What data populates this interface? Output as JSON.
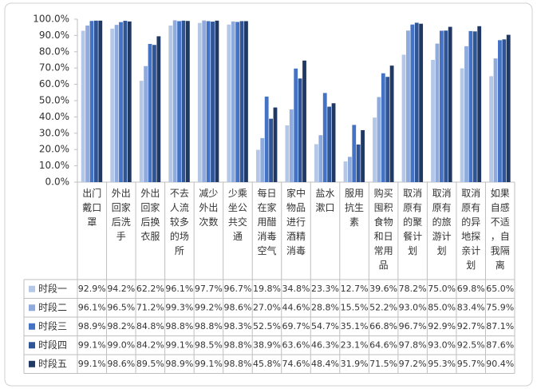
{
  "chart_data": {
    "type": "bar",
    "categories": [
      "出门戴口罩",
      "外出回家后洗手",
      "外出回家后换衣服",
      "不去人流较多的场所",
      "减少外出次数",
      "少乘坐公共交通",
      "每日在家用醋消毒空气",
      "家中物品进行酒精消毒",
      "盐水漱口",
      "服用抗生素",
      "购买囤积食物和日常用品",
      "取消原有的聚餐计划",
      "取消原有的旅游计划",
      "取消原有的异地探亲计划",
      "如果自感不适，自我隔离"
    ],
    "series": [
      {
        "name": "时段一",
        "color": "#b4c7e7",
        "values": [
          92.9,
          94.2,
          62.2,
          96.1,
          97.7,
          96.7,
          19.8,
          34.8,
          23.3,
          12.7,
          39.6,
          78.2,
          75.0,
          69.8,
          65.0
        ],
        "value_labels": [
          "92.9%",
          "94.2%",
          "62.2%",
          "96.1%",
          "97.7%",
          "96.7%",
          "19.8%",
          "34.8%",
          "23.3%",
          "12.7%",
          "39.6%",
          "78.2%",
          "75.0%",
          "69.8%",
          "65.0%"
        ]
      },
      {
        "name": "时段二",
        "color": "#8faadc",
        "values": [
          96.1,
          96.5,
          71.2,
          99.3,
          99.2,
          98.6,
          27.0,
          44.6,
          28.8,
          15.5,
          52.2,
          93.0,
          85.0,
          83.4,
          75.9
        ],
        "value_labels": [
          "96.1%",
          "96.5%",
          "71.2%",
          "99.3%",
          "99.2%",
          "98.6%",
          "27.0%",
          "44.6%",
          "28.8%",
          "15.5%",
          "52.2%",
          "93.0%",
          "85.0%",
          "83.4%",
          "75.9%"
        ]
      },
      {
        "name": "时段三",
        "color": "#4472c4",
        "values": [
          98.9,
          98.2,
          84.8,
          98.8,
          98.8,
          98.3,
          52.5,
          69.7,
          54.7,
          35.1,
          66.8,
          96.7,
          92.9,
          92.7,
          87.1
        ],
        "value_labels": [
          "98.9%",
          "98.2%",
          "84.8%",
          "98.8%",
          "98.8%",
          "98.3%",
          "52.5%",
          "69.7%",
          "54.7%",
          "35.1%",
          "66.8%",
          "96.7%",
          "92.9%",
          "92.7%",
          "87.1%"
        ]
      },
      {
        "name": "时段四",
        "color": "#2f5597",
        "values": [
          99.1,
          99.0,
          84.2,
          99.1,
          98.5,
          98.8,
          38.9,
          63.6,
          46.3,
          23.1,
          64.6,
          97.8,
          93.0,
          92.5,
          87.6
        ],
        "value_labels": [
          "99.1%",
          "99.0%",
          "84.2%",
          "99.1%",
          "98.5%",
          "98.8%",
          "38.9%",
          "63.6%",
          "46.3%",
          "23.1%",
          "64.6%",
          "97.8%",
          "93.0%",
          "92.5%",
          "87.6%"
        ]
      },
      {
        "name": "时段五",
        "color": "#1f3864",
        "values": [
          99.1,
          98.6,
          89.5,
          98.9,
          99.1,
          98.8,
          45.8,
          74.6,
          48.4,
          31.9,
          71.5,
          97.2,
          95.3,
          95.7,
          90.4
        ],
        "value_labels": [
          "99.1%",
          "98.6%",
          "89.5%",
          "98.9%",
          "99.1%",
          "98.8%",
          "45.8%",
          "74.6%",
          "48.4%",
          "31.9%",
          "71.5%",
          "97.2%",
          "95.3%",
          "95.7%",
          "90.4%"
        ]
      }
    ],
    "ylim": [
      0,
      100
    ],
    "yticks": [
      {
        "value": 0,
        "label": "0.0%"
      },
      {
        "value": 10,
        "label": "10.0%"
      },
      {
        "value": 20,
        "label": "20.0%"
      },
      {
        "value": 30,
        "label": "30.0%"
      },
      {
        "value": 40,
        "label": "40.0%"
      },
      {
        "value": 50,
        "label": "50.0%"
      },
      {
        "value": 60,
        "label": "60.0%"
      },
      {
        "value": 70,
        "label": "70.0%"
      },
      {
        "value": 80,
        "label": "80.0%"
      },
      {
        "value": 90,
        "label": "90.0%"
      },
      {
        "value": 100,
        "label": "100.0%"
      }
    ]
  }
}
